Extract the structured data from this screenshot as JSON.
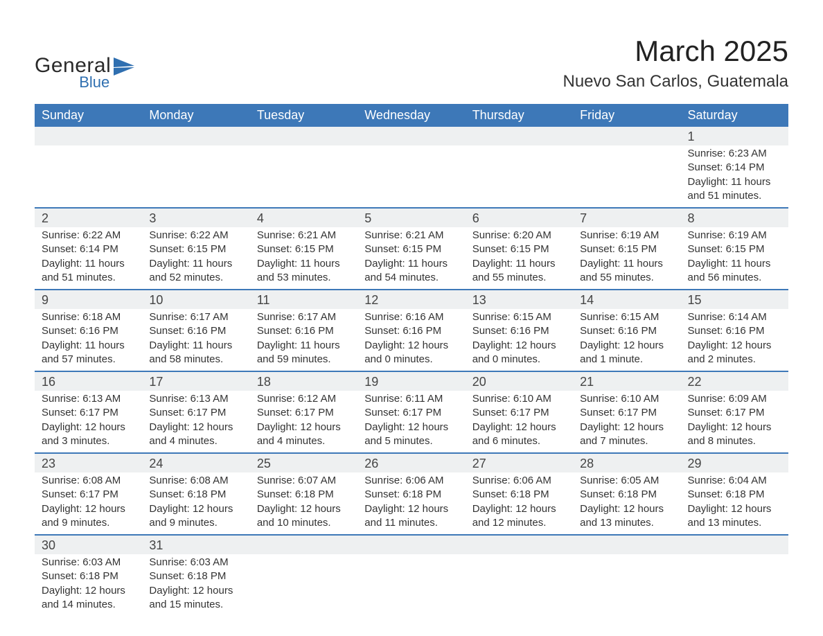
{
  "logo": {
    "general": "General",
    "blue": "Blue",
    "icon_color": "#2f6fb0"
  },
  "title": "March 2025",
  "location": "Nuevo San Carlos, Guatemala",
  "colors": {
    "header_bg": "#3d78b8",
    "header_text": "#ffffff",
    "daynum_bg": "#eef0f1",
    "row_border": "#3d78b8",
    "body_text": "#333333",
    "page_bg": "#ffffff"
  },
  "typography": {
    "title_fontsize": 42,
    "location_fontsize": 24,
    "header_fontsize": 18,
    "daynum_fontsize": 18,
    "cell_fontsize": 15
  },
  "weekdays": [
    "Sunday",
    "Monday",
    "Tuesday",
    "Wednesday",
    "Thursday",
    "Friday",
    "Saturday"
  ],
  "labels": {
    "sunrise": "Sunrise:",
    "sunset": "Sunset:",
    "daylight": "Daylight:"
  },
  "weeks": [
    [
      null,
      null,
      null,
      null,
      null,
      null,
      {
        "day": "1",
        "sunrise": "6:23 AM",
        "sunset": "6:14 PM",
        "daylight": "11 hours and 51 minutes."
      }
    ],
    [
      {
        "day": "2",
        "sunrise": "6:22 AM",
        "sunset": "6:14 PM",
        "daylight": "11 hours and 51 minutes."
      },
      {
        "day": "3",
        "sunrise": "6:22 AM",
        "sunset": "6:15 PM",
        "daylight": "11 hours and 52 minutes."
      },
      {
        "day": "4",
        "sunrise": "6:21 AM",
        "sunset": "6:15 PM",
        "daylight": "11 hours and 53 minutes."
      },
      {
        "day": "5",
        "sunrise": "6:21 AM",
        "sunset": "6:15 PM",
        "daylight": "11 hours and 54 minutes."
      },
      {
        "day": "6",
        "sunrise": "6:20 AM",
        "sunset": "6:15 PM",
        "daylight": "11 hours and 55 minutes."
      },
      {
        "day": "7",
        "sunrise": "6:19 AM",
        "sunset": "6:15 PM",
        "daylight": "11 hours and 55 minutes."
      },
      {
        "day": "8",
        "sunrise": "6:19 AM",
        "sunset": "6:15 PM",
        "daylight": "11 hours and 56 minutes."
      }
    ],
    [
      {
        "day": "9",
        "sunrise": "6:18 AM",
        "sunset": "6:16 PM",
        "daylight": "11 hours and 57 minutes."
      },
      {
        "day": "10",
        "sunrise": "6:17 AM",
        "sunset": "6:16 PM",
        "daylight": "11 hours and 58 minutes."
      },
      {
        "day": "11",
        "sunrise": "6:17 AM",
        "sunset": "6:16 PM",
        "daylight": "11 hours and 59 minutes."
      },
      {
        "day": "12",
        "sunrise": "6:16 AM",
        "sunset": "6:16 PM",
        "daylight": "12 hours and 0 minutes."
      },
      {
        "day": "13",
        "sunrise": "6:15 AM",
        "sunset": "6:16 PM",
        "daylight": "12 hours and 0 minutes."
      },
      {
        "day": "14",
        "sunrise": "6:15 AM",
        "sunset": "6:16 PM",
        "daylight": "12 hours and 1 minute."
      },
      {
        "day": "15",
        "sunrise": "6:14 AM",
        "sunset": "6:16 PM",
        "daylight": "12 hours and 2 minutes."
      }
    ],
    [
      {
        "day": "16",
        "sunrise": "6:13 AM",
        "sunset": "6:17 PM",
        "daylight": "12 hours and 3 minutes."
      },
      {
        "day": "17",
        "sunrise": "6:13 AM",
        "sunset": "6:17 PM",
        "daylight": "12 hours and 4 minutes."
      },
      {
        "day": "18",
        "sunrise": "6:12 AM",
        "sunset": "6:17 PM",
        "daylight": "12 hours and 4 minutes."
      },
      {
        "day": "19",
        "sunrise": "6:11 AM",
        "sunset": "6:17 PM",
        "daylight": "12 hours and 5 minutes."
      },
      {
        "day": "20",
        "sunrise": "6:10 AM",
        "sunset": "6:17 PM",
        "daylight": "12 hours and 6 minutes."
      },
      {
        "day": "21",
        "sunrise": "6:10 AM",
        "sunset": "6:17 PM",
        "daylight": "12 hours and 7 minutes."
      },
      {
        "day": "22",
        "sunrise": "6:09 AM",
        "sunset": "6:17 PM",
        "daylight": "12 hours and 8 minutes."
      }
    ],
    [
      {
        "day": "23",
        "sunrise": "6:08 AM",
        "sunset": "6:17 PM",
        "daylight": "12 hours and 9 minutes."
      },
      {
        "day": "24",
        "sunrise": "6:08 AM",
        "sunset": "6:18 PM",
        "daylight": "12 hours and 9 minutes."
      },
      {
        "day": "25",
        "sunrise": "6:07 AM",
        "sunset": "6:18 PM",
        "daylight": "12 hours and 10 minutes."
      },
      {
        "day": "26",
        "sunrise": "6:06 AM",
        "sunset": "6:18 PM",
        "daylight": "12 hours and 11 minutes."
      },
      {
        "day": "27",
        "sunrise": "6:06 AM",
        "sunset": "6:18 PM",
        "daylight": "12 hours and 12 minutes."
      },
      {
        "day": "28",
        "sunrise": "6:05 AM",
        "sunset": "6:18 PM",
        "daylight": "12 hours and 13 minutes."
      },
      {
        "day": "29",
        "sunrise": "6:04 AM",
        "sunset": "6:18 PM",
        "daylight": "12 hours and 13 minutes."
      }
    ],
    [
      {
        "day": "30",
        "sunrise": "6:03 AM",
        "sunset": "6:18 PM",
        "daylight": "12 hours and 14 minutes."
      },
      {
        "day": "31",
        "sunrise": "6:03 AM",
        "sunset": "6:18 PM",
        "daylight": "12 hours and 15 minutes."
      },
      null,
      null,
      null,
      null,
      null
    ]
  ]
}
